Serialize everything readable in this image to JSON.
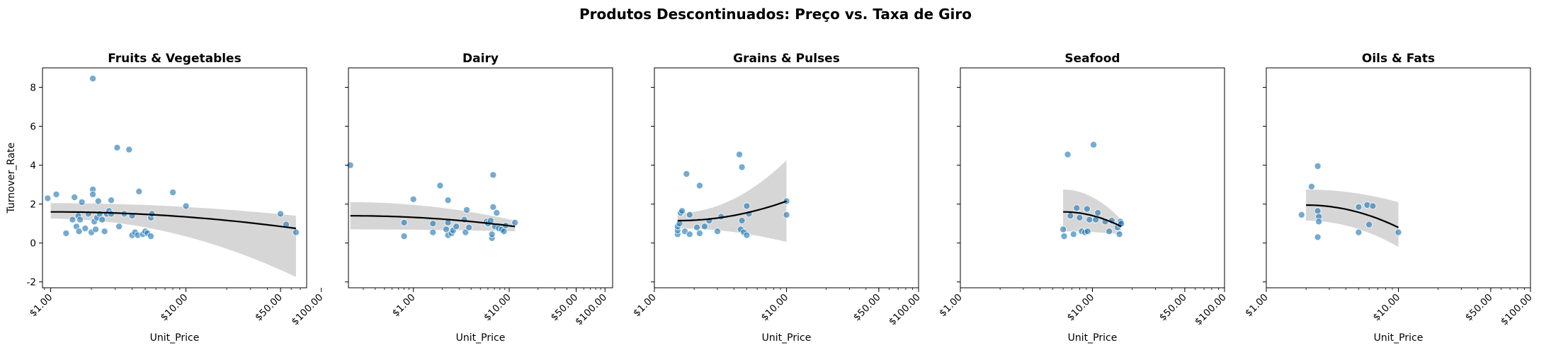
{
  "suptitle": "Produtos Descontinuados: Preço vs. Taxa de Giro",
  "chart_data": {
    "type": "scatter",
    "log_x": true,
    "xlabel": "Unit_Price",
    "ylabel": "Turnover_Rate",
    "ylim": [
      -2.3,
      9.0
    ],
    "yticks": [
      -2,
      0,
      2,
      4,
      6,
      8
    ],
    "point_color": "#1f77b4",
    "fit_color": "#000000",
    "band_color": "#c8c8c8",
    "panels": [
      {
        "title": "Fruits & Vegetables",
        "xlim": [
          0.87,
          78
        ],
        "xticks": [
          {
            "v": 1,
            "label": "$1.00"
          },
          {
            "v": 10,
            "label": "$10.00"
          },
          {
            "v": 50,
            "label": "$50.00"
          },
          {
            "v": 100,
            "label": "$100.00"
          }
        ],
        "points": [
          [
            0.95,
            2.3
          ],
          [
            1.1,
            2.5
          ],
          [
            1.3,
            0.5
          ],
          [
            1.45,
            1.2
          ],
          [
            1.5,
            2.35
          ],
          [
            1.55,
            0.85
          ],
          [
            1.6,
            1.4
          ],
          [
            1.62,
            0.6
          ],
          [
            1.65,
            1.2
          ],
          [
            1.7,
            2.1
          ],
          [
            1.8,
            0.75
          ],
          [
            1.9,
            1.5
          ],
          [
            2.0,
            0.55
          ],
          [
            2.05,
            2.75
          ],
          [
            2.05,
            2.5
          ],
          [
            2.05,
            8.45
          ],
          [
            2.1,
            1.1
          ],
          [
            2.15,
            0.7
          ],
          [
            2.2,
            1.3
          ],
          [
            2.25,
            2.15
          ],
          [
            2.3,
            1.5
          ],
          [
            2.4,
            1.2
          ],
          [
            2.5,
            0.6
          ],
          [
            2.6,
            1.5
          ],
          [
            2.7,
            1.65
          ],
          [
            2.8,
            1.5
          ],
          [
            2.8,
            2.2
          ],
          [
            3.1,
            4.9
          ],
          [
            3.2,
            0.85
          ],
          [
            3.5,
            1.5
          ],
          [
            3.8,
            4.8
          ],
          [
            4.0,
            0.4
          ],
          [
            4.0,
            1.4
          ],
          [
            4.2,
            0.55
          ],
          [
            4.4,
            0.4
          ],
          [
            4.5,
            2.65
          ],
          [
            4.8,
            0.45
          ],
          [
            5.0,
            0.6
          ],
          [
            5.2,
            0.5
          ],
          [
            5.5,
            0.35
          ],
          [
            5.5,
            1.3
          ],
          [
            5.6,
            1.5
          ],
          [
            8.0,
            2.6
          ],
          [
            10.0,
            1.9
          ],
          [
            50.0,
            1.5
          ],
          [
            55.0,
            0.95
          ],
          [
            65.0,
            0.55
          ]
        ],
        "fit": {
          "x0": 1.0,
          "x1": 65.0,
          "y0": 1.6,
          "y1": 0.75,
          "lo0": 1.25,
          "lo1": -1.75,
          "hi0": 2.05,
          "hi1": 1.4
        }
      },
      {
        "title": "Dairy",
        "xlim": [
          0.21,
          120
        ],
        "xticks": [
          {
            "v": 1,
            "label": "$1.00"
          },
          {
            "v": 10,
            "label": "$10.00"
          },
          {
            "v": 50,
            "label": "$50.00"
          },
          {
            "v": 100,
            "label": "$100.00"
          }
        ],
        "points": [
          [
            0.22,
            4.0
          ],
          [
            0.8,
            0.35
          ],
          [
            0.8,
            1.05
          ],
          [
            1.0,
            2.25
          ],
          [
            1.6,
            0.55
          ],
          [
            1.6,
            1.0
          ],
          [
            1.9,
            2.95
          ],
          [
            2.2,
            0.7
          ],
          [
            2.3,
            0.4
          ],
          [
            2.3,
            1.05
          ],
          [
            2.3,
            2.2
          ],
          [
            2.5,
            0.5
          ],
          [
            2.6,
            0.65
          ],
          [
            2.8,
            0.85
          ],
          [
            3.4,
            1.2
          ],
          [
            3.5,
            0.55
          ],
          [
            3.6,
            1.7
          ],
          [
            3.8,
            0.8
          ],
          [
            5.8,
            1.1
          ],
          [
            6.0,
            1.0
          ],
          [
            6.4,
            1.15
          ],
          [
            6.6,
            0.25
          ],
          [
            6.6,
            0.45
          ],
          [
            6.8,
            1.85
          ],
          [
            6.8,
            3.5
          ],
          [
            7.1,
            0.85
          ],
          [
            7.4,
            1.55
          ],
          [
            7.8,
            0.75
          ],
          [
            8.4,
            0.7
          ],
          [
            8.8,
            0.6
          ],
          [
            9.2,
            0.9
          ],
          [
            11.5,
            1.05
          ]
        ],
        "fit": {
          "x0": 0.22,
          "x1": 11.5,
          "y0": 1.4,
          "y1": 0.85,
          "lo0": 0.7,
          "lo1": 0.6,
          "hi0": 2.1,
          "hi1": 1.15
        }
      },
      {
        "title": "Grains & Pulses",
        "xlim": [
          1.0,
          100
        ],
        "xticks": [
          {
            "v": 1,
            "label": "$1.00"
          },
          {
            "v": 10,
            "label": "$10.00"
          },
          {
            "v": 50,
            "label": "$50.00"
          },
          {
            "v": 100,
            "label": "$100.00"
          }
        ],
        "points": [
          [
            1.5,
            0.45
          ],
          [
            1.5,
            0.65
          ],
          [
            1.5,
            0.85
          ],
          [
            1.55,
            1.0
          ],
          [
            1.58,
            1.55
          ],
          [
            1.62,
            1.65
          ],
          [
            1.7,
            0.6
          ],
          [
            1.75,
            3.55
          ],
          [
            1.85,
            0.45
          ],
          [
            1.85,
            1.45
          ],
          [
            2.1,
            0.8
          ],
          [
            2.2,
            2.95
          ],
          [
            2.2,
            0.5
          ],
          [
            2.4,
            0.85
          ],
          [
            2.6,
            1.15
          ],
          [
            3.0,
            0.6
          ],
          [
            3.2,
            1.35
          ],
          [
            4.4,
            4.55
          ],
          [
            4.6,
            3.9
          ],
          [
            4.5,
            0.7
          ],
          [
            4.6,
            1.15
          ],
          [
            4.75,
            0.55
          ],
          [
            5.0,
            1.9
          ],
          [
            5.0,
            0.4
          ],
          [
            5.2,
            1.5
          ],
          [
            10.0,
            2.15
          ],
          [
            10.0,
            1.45
          ]
        ],
        "fit": {
          "x0": 1.5,
          "x1": 10.0,
          "y0": 1.15,
          "y1": 2.15,
          "lo0": 0.75,
          "lo1": 0.05,
          "hi0": 1.55,
          "hi1": 4.25
        }
      },
      {
        "title": "Seafood",
        "xlim": [
          1.0,
          100
        ],
        "xticks": [
          {
            "v": 1,
            "label": "$1.00"
          },
          {
            "v": 10,
            "label": "$10.00"
          },
          {
            "v": 50,
            "label": "$50.00"
          },
          {
            "v": 100,
            "label": "$100.00"
          }
        ],
        "points": [
          [
            6.0,
            0.7
          ],
          [
            6.1,
            0.35
          ],
          [
            6.5,
            4.55
          ],
          [
            6.8,
            1.4
          ],
          [
            7.2,
            0.45
          ],
          [
            7.6,
            1.8
          ],
          [
            8.0,
            1.3
          ],
          [
            8.3,
            0.6
          ],
          [
            8.8,
            0.55
          ],
          [
            9.1,
            1.75
          ],
          [
            9.2,
            0.6
          ],
          [
            9.5,
            1.2
          ],
          [
            10.2,
            5.05
          ],
          [
            10.6,
            1.2
          ],
          [
            11.0,
            1.55
          ],
          [
            12.5,
            1.1
          ],
          [
            13.4,
            0.6
          ],
          [
            14.0,
            1.15
          ],
          [
            15.5,
            0.8
          ],
          [
            16.0,
            0.45
          ],
          [
            16.2,
            0.95
          ],
          [
            16.3,
            1.1
          ],
          [
            16.5,
            1.0
          ]
        ],
        "fit": {
          "x0": 6.0,
          "x1": 16.5,
          "y0": 1.6,
          "y1": 0.85,
          "lo0": 0.6,
          "lo1": 0.45,
          "hi0": 2.75,
          "hi1": 1.2
        }
      },
      {
        "title": "Oils & Fats",
        "xlim": [
          1.0,
          100
        ],
        "xticks": [
          {
            "v": 1,
            "label": "$1.00"
          },
          {
            "v": 10,
            "label": "$10.00"
          },
          {
            "v": 50,
            "label": "$50.00"
          },
          {
            "v": 100,
            "label": "$100.00"
          }
        ],
        "points": [
          [
            1.85,
            1.45
          ],
          [
            2.2,
            2.9
          ],
          [
            2.45,
            3.95
          ],
          [
            2.45,
            1.65
          ],
          [
            2.5,
            1.35
          ],
          [
            2.45,
            0.3
          ],
          [
            2.5,
            1.1
          ],
          [
            5.0,
            1.85
          ],
          [
            5.0,
            0.55
          ],
          [
            5.8,
            1.95
          ],
          [
            6.0,
            0.95
          ],
          [
            6.4,
            1.9
          ],
          [
            10.0,
            0.55
          ]
        ],
        "fit": {
          "x0": 2.0,
          "x1": 10.0,
          "y0": 1.95,
          "y1": 0.8,
          "lo0": 1.15,
          "lo1": -0.2,
          "hi0": 2.75,
          "hi1": 2.1
        }
      }
    ]
  }
}
